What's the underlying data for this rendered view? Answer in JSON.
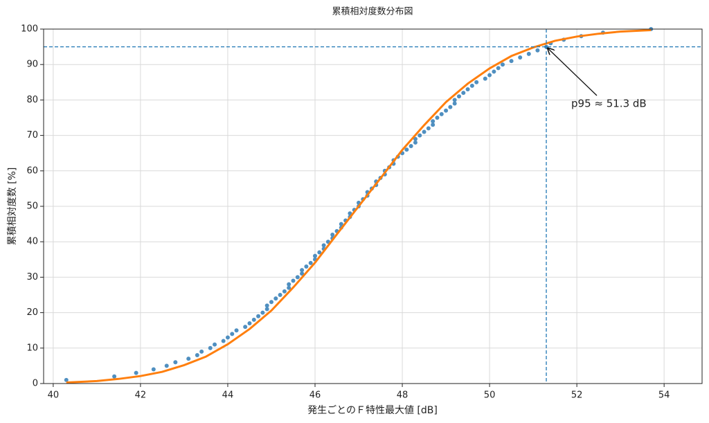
{
  "chart_data": {
    "type": "scatter",
    "title": "累積相対度数分布図",
    "xlabel": "発生ごとのＦ特性最大値 [dB]",
    "ylabel": "累積相対度数 [%]",
    "xlim": [
      39.78,
      54.87
    ],
    "ylim": [
      0,
      100
    ],
    "xticks": [
      40,
      42,
      44,
      46,
      48,
      50,
      52,
      54
    ],
    "yticks": [
      0,
      10,
      20,
      30,
      40,
      50,
      60,
      70,
      80,
      90,
      100
    ],
    "grid": true,
    "points": {
      "color": "#4f8fc0",
      "x": [
        40.3,
        41.4,
        41.9,
        42.3,
        42.6,
        42.8,
        43.1,
        43.3,
        43.4,
        43.6,
        43.7,
        43.9,
        44.0,
        44.1,
        44.2,
        44.4,
        44.5,
        44.6,
        44.7,
        44.8,
        44.9,
        44.9,
        45.0,
        45.1,
        45.2,
        45.3,
        45.4,
        45.4,
        45.5,
        45.6,
        45.7,
        45.7,
        45.8,
        45.9,
        46.0,
        46.0,
        46.1,
        46.2,
        46.2,
        46.3,
        46.4,
        46.4,
        46.5,
        46.6,
        46.6,
        46.7,
        46.8,
        46.8,
        46.9,
        47.0,
        47.0,
        47.1,
        47.2,
        47.2,
        47.3,
        47.4,
        47.4,
        47.5,
        47.6,
        47.6,
        47.7,
        47.8,
        47.8,
        47.9,
        48.0,
        48.1,
        48.2,
        48.3,
        48.3,
        48.4,
        48.5,
        48.6,
        48.7,
        48.7,
        48.8,
        48.9,
        49.0,
        49.1,
        49.2,
        49.2,
        49.3,
        49.4,
        49.5,
        49.6,
        49.7,
        49.9,
        50.0,
        50.1,
        50.2,
        50.3,
        50.5,
        50.7,
        50.9,
        51.1,
        51.3,
        51.4,
        51.7,
        52.1,
        52.6,
        53.7
      ],
      "y": [
        1,
        2,
        3,
        4,
        5,
        6,
        7,
        8,
        9,
        10,
        11,
        12,
        13,
        14,
        15,
        16,
        17,
        18,
        19,
        20,
        21,
        22,
        23,
        24,
        25,
        26,
        27,
        28,
        29,
        30,
        31,
        32,
        33,
        34,
        35,
        36,
        37,
        38,
        39,
        40,
        41,
        42,
        43,
        44,
        45,
        46,
        47,
        48,
        49,
        50,
        51,
        52,
        53,
        54,
        55,
        56,
        57,
        58,
        59,
        60,
        61,
        62,
        63,
        64,
        65,
        66,
        67,
        68,
        69,
        70,
        71,
        72,
        73,
        74,
        75,
        76,
        77,
        78,
        79,
        80,
        81,
        82,
        83,
        84,
        85,
        86,
        87,
        88,
        89,
        90,
        91,
        92,
        93,
        94,
        95,
        96,
        97,
        98,
        99,
        100
      ]
    },
    "curve": {
      "color": "#ff7f0e",
      "x": [
        40.3,
        41,
        41.5,
        42,
        42.5,
        43,
        43.5,
        44,
        44.5,
        45,
        45.5,
        46,
        46.5,
        47,
        47.5,
        48,
        48.5,
        49,
        49.5,
        50,
        50.5,
        51,
        51.5,
        52,
        52.5,
        53,
        53.7
      ],
      "y": [
        0.3,
        0.7,
        1.3,
        2.1,
        3.3,
        5.2,
        7.6,
        11.1,
        15.4,
        20.6,
        27.1,
        34.1,
        42.1,
        50,
        57.9,
        65.9,
        72.9,
        79.4,
        84.6,
        88.9,
        92.4,
        94.8,
        96.7,
        97.9,
        98.7,
        99.3,
        99.7
      ]
    },
    "reference_lines": {
      "color": "#1f77b4",
      "x": 51.3,
      "y": 95
    },
    "annotation": {
      "text": "p95 ≈ 51.3 dB"
    }
  }
}
